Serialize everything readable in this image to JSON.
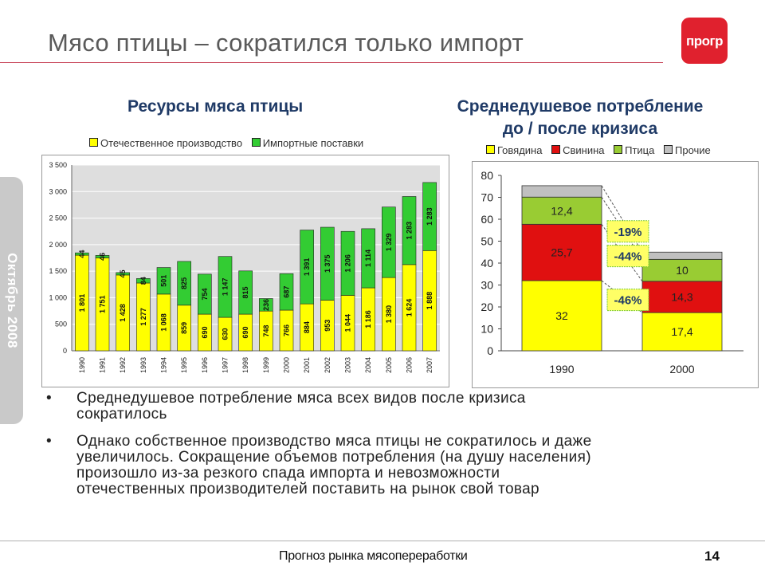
{
  "header": {
    "title": "Мясо птицы – сократился только импорт",
    "logo_text": "прогр"
  },
  "sidebar": {
    "text": "Октябрь 2008"
  },
  "left_chart_title": "Ресурсы мяса птицы",
  "right_chart_title": {
    "line1": "Среднедушевое потребление",
    "line2": "до / после кризиса"
  },
  "left_legend": [
    "Отечественное производство",
    "Импортные поставки"
  ],
  "right_legend": [
    "Говядина",
    "Свинина",
    "Птица",
    "Прочие"
  ],
  "chart_data": [
    {
      "type": "bar",
      "stacked": true,
      "title": "Ресурсы мяса птицы",
      "categories": [
        "1990",
        "1991",
        "1992",
        "1993",
        "1994",
        "1995",
        "1996",
        "1997",
        "1998",
        "1999",
        "2000",
        "2001",
        "2002",
        "2003",
        "2004",
        "2005",
        "2006",
        "2007"
      ],
      "series": [
        {
          "name": "Отечественное производство",
          "color": "#ffff00",
          "values": [
            1801,
            1751,
            1428,
            1277,
            1068,
            859,
            690,
            630,
            690,
            748,
            766,
            884,
            953,
            1044,
            1186,
            1380,
            1624,
            1888
          ],
          "labels": [
            "1 801",
            "1 751",
            "1 428",
            "1 277",
            "1 068",
            "859",
            "690",
            "630",
            "690",
            "748",
            "766",
            "884",
            "953",
            "1 044",
            "1 186",
            "1 380",
            "1 624",
            "1 888"
          ]
        },
        {
          "name": "Импортные поставки",
          "color": "#33cc33",
          "values": [
            44,
            46,
            45,
            84,
            501,
            825,
            754,
            1147,
            815,
            236,
            687,
            1391,
            1375,
            1206,
            1114,
            1329,
            1283,
            1283
          ],
          "labels": [
            "44",
            "46",
            "45",
            "84",
            "501",
            "825",
            "754",
            "1 147",
            "815",
            "236",
            "687",
            "1 391",
            "1 375",
            "1 206",
            "1 114",
            "1 329",
            "1 283",
            "1 283"
          ]
        }
      ],
      "ylim": [
        0,
        3500
      ],
      "yticks": [
        "0",
        "500",
        "1 000",
        "1 500",
        "2 000",
        "2 500",
        "3 000",
        "3 500"
      ],
      "grid": true,
      "legend": "top"
    },
    {
      "type": "bar",
      "stacked": true,
      "title": "Среднедушевое потребление до / после кризиса",
      "categories": [
        "1990",
        "2000"
      ],
      "series": [
        {
          "name": "Говядина",
          "color": "#ffff00",
          "values": [
            32,
            17.4
          ],
          "labels": [
            "32",
            "17,4"
          ]
        },
        {
          "name": "Свинина",
          "color": "#e01010",
          "values": [
            25.7,
            14.3
          ],
          "labels": [
            "25,7",
            "14,3"
          ]
        },
        {
          "name": "Птица",
          "color": "#99cc33",
          "values": [
            12.4,
            10
          ],
          "labels": [
            "12,4",
            "10"
          ]
        },
        {
          "name": "Прочие",
          "color": "#c0c0c0",
          "values": [
            5.2,
            3.3
          ],
          "labels": [
            "",
            ""
          ]
        }
      ],
      "ylim": [
        0,
        80
      ],
      "yticks": [
        "0",
        "10",
        "20",
        "30",
        "40",
        "50",
        "60",
        "70",
        "80"
      ],
      "annotations": [
        {
          "series": "Птица",
          "text": "-19%"
        },
        {
          "series": "Свинина",
          "text": "-44%"
        },
        {
          "series": "Говядина",
          "text": "-46%"
        }
      ],
      "annotation_bg": "#ffff66",
      "annotation_color": "#1f3a66",
      "grid": false,
      "legend": "top"
    }
  ],
  "bullets": [
    [
      "Среднедушевое потребление мяса всех видов после кризиса",
      "сократилось"
    ],
    [
      "Однако собственное производство мяса птицы не сократилось и даже",
      "увеличилось. Сокращение объемов потребления (на душу населения)",
      "произошло из-за резкого спада импорта и невозможности",
      "отечественных производителей поставить на рынок свой товар"
    ]
  ],
  "footer": {
    "text": "Прогноз рынка мясопереработки",
    "page": "14"
  },
  "colors": {
    "accent_red": "#e0212e",
    "title_gray": "#5a5a5a",
    "subtitle_navy": "#1f3a66"
  }
}
